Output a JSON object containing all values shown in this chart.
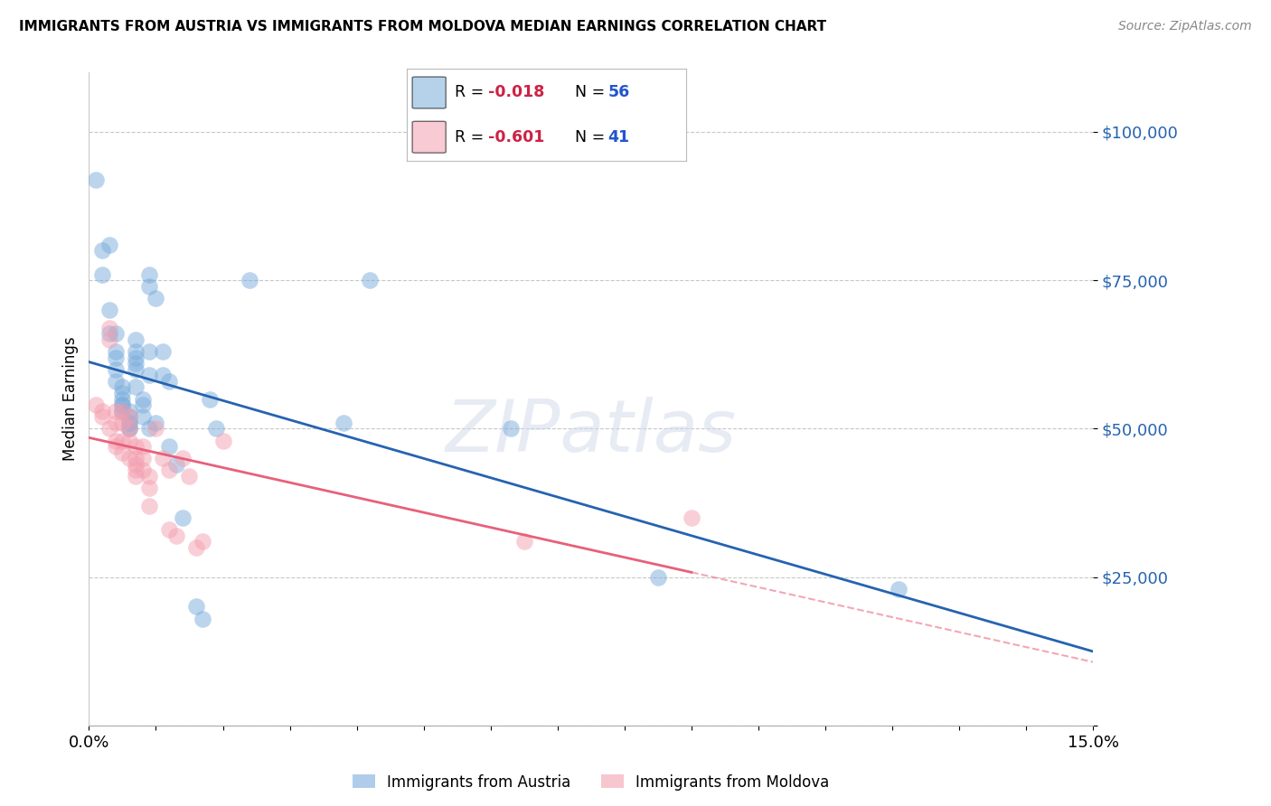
{
  "title": "IMMIGRANTS FROM AUSTRIA VS IMMIGRANTS FROM MOLDOVA MEDIAN EARNINGS CORRELATION CHART",
  "source": "Source: ZipAtlas.com",
  "ylabel": "Median Earnings",
  "xlim": [
    0.0,
    0.15
  ],
  "ylim": [
    0,
    110000
  ],
  "yticks": [
    0,
    25000,
    50000,
    75000,
    100000
  ],
  "ytick_labels": [
    "",
    "$25,000",
    "$50,000",
    "$75,000",
    "$100,000"
  ],
  "austria_color": "#7aaddc",
  "moldova_color": "#f4a0b0",
  "austria_line_color": "#2563b0",
  "moldova_line_color": "#e8607a",
  "background_color": "#ffffff",
  "grid_color": "#c8c8c8",
  "watermark": "ZIPatlas",
  "legend_R_austria": "-0.018",
  "legend_N_austria": "56",
  "legend_R_moldova": "-0.601",
  "legend_N_moldova": "41",
  "austria_x": [
    0.001,
    0.002,
    0.002,
    0.003,
    0.003,
    0.003,
    0.004,
    0.004,
    0.004,
    0.004,
    0.005,
    0.005,
    0.005,
    0.005,
    0.005,
    0.005,
    0.006,
    0.006,
    0.006,
    0.006,
    0.006,
    0.006,
    0.007,
    0.007,
    0.007,
    0.007,
    0.007,
    0.007,
    0.008,
    0.008,
    0.008,
    0.009,
    0.009,
    0.009,
    0.009,
    0.009,
    0.01,
    0.01,
    0.011,
    0.011,
    0.012,
    0.012,
    0.013,
    0.014,
    0.016,
    0.017,
    0.018,
    0.019,
    0.024,
    0.038,
    0.042,
    0.063,
    0.085,
    0.121,
    0.004,
    0.005
  ],
  "austria_y": [
    92000,
    80000,
    76000,
    81000,
    70000,
    66000,
    66000,
    63000,
    62000,
    60000,
    57000,
    56000,
    55000,
    54000,
    54000,
    53000,
    53000,
    52000,
    51000,
    51000,
    50000,
    50000,
    65000,
    63000,
    62000,
    61000,
    60000,
    57000,
    55000,
    54000,
    52000,
    76000,
    74000,
    63000,
    59000,
    50000,
    72000,
    51000,
    63000,
    59000,
    58000,
    47000,
    44000,
    35000,
    20000,
    18000,
    55000,
    50000,
    75000,
    51000,
    75000,
    50000,
    25000,
    23000,
    58000,
    53000
  ],
  "moldova_x": [
    0.001,
    0.002,
    0.002,
    0.003,
    0.003,
    0.003,
    0.004,
    0.004,
    0.004,
    0.004,
    0.005,
    0.005,
    0.005,
    0.005,
    0.006,
    0.006,
    0.006,
    0.006,
    0.007,
    0.007,
    0.007,
    0.007,
    0.007,
    0.008,
    0.008,
    0.008,
    0.009,
    0.009,
    0.009,
    0.01,
    0.011,
    0.012,
    0.012,
    0.013,
    0.014,
    0.015,
    0.016,
    0.017,
    0.02,
    0.065,
    0.09
  ],
  "moldova_y": [
    54000,
    53000,
    52000,
    67000,
    65000,
    50000,
    53000,
    51000,
    48000,
    47000,
    53000,
    51000,
    48000,
    46000,
    52000,
    50000,
    48000,
    45000,
    47000,
    45000,
    44000,
    43000,
    42000,
    47000,
    45000,
    43000,
    42000,
    40000,
    37000,
    50000,
    45000,
    43000,
    33000,
    32000,
    45000,
    42000,
    30000,
    31000,
    48000,
    31000,
    35000
  ]
}
